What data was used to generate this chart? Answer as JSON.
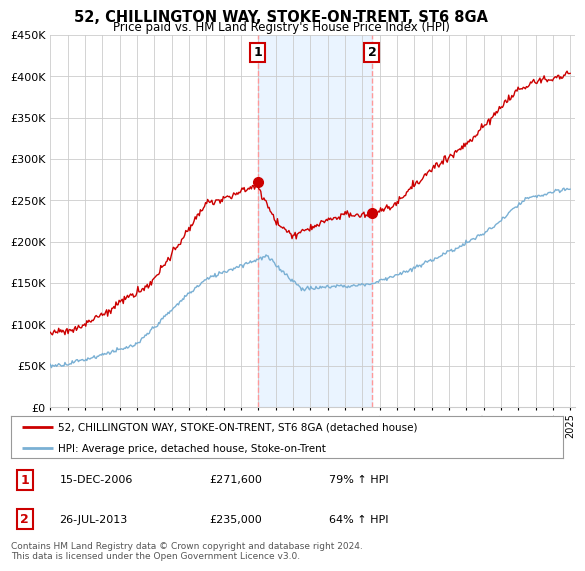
{
  "title": "52, CHILLINGTON WAY, STOKE-ON-TRENT, ST6 8GA",
  "subtitle": "Price paid vs. HM Land Registry's House Price Index (HPI)",
  "ylim": [
    0,
    450000
  ],
  "yticks": [
    0,
    50000,
    100000,
    150000,
    200000,
    250000,
    300000,
    350000,
    400000,
    450000
  ],
  "ytick_labels": [
    "£0",
    "£50K",
    "£100K",
    "£150K",
    "£200K",
    "£250K",
    "£300K",
    "£350K",
    "£400K",
    "£450K"
  ],
  "hpi_color": "#7ab0d4",
  "price_color": "#cc0000",
  "sale1_year": 2006.96,
  "sale1_price": 271600,
  "sale2_year": 2013.56,
  "sale2_price": 235000,
  "shade_color": "#ddeeff",
  "dashed_color": "#ff9999",
  "legend_line1": "52, CHILLINGTON WAY, STOKE-ON-TRENT, ST6 8GA (detached house)",
  "legend_line2": "HPI: Average price, detached house, Stoke-on-Trent",
  "table_row1": [
    "1",
    "15-DEC-2006",
    "£271,600",
    "79% ↑ HPI"
  ],
  "table_row2": [
    "2",
    "26-JUL-2013",
    "£235,000",
    "64% ↑ HPI"
  ],
  "footnote": "Contains HM Land Registry data © Crown copyright and database right 2024.\nThis data is licensed under the Open Government Licence v3.0.",
  "bg_color": "#ffffff",
  "grid_color": "#cccccc"
}
